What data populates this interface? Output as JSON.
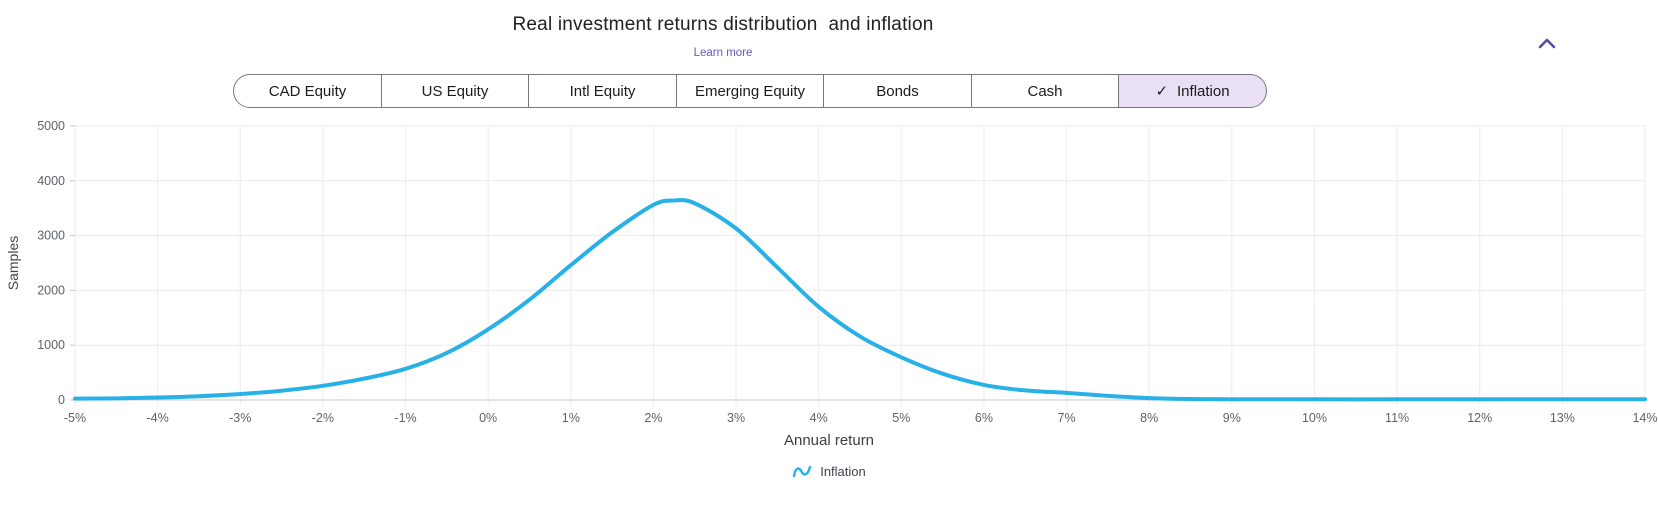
{
  "header": {
    "title": "Real investment returns distribution  and inflation",
    "learn_more": "Learn more",
    "accent_color": "#6a58c0",
    "collapse_icon_color": "#5c4a9e"
  },
  "asset_tabs": {
    "options": [
      "CAD Equity",
      "US Equity",
      "Intl Equity",
      "Emerging Equity",
      "Bonds",
      "Cash",
      "Inflation"
    ],
    "selected": "Inflation",
    "selected_check": "✓",
    "selected_bg": "#e9e0f6"
  },
  "chart_data": {
    "type": "line",
    "title": "Real investment returns distribution  and inflation",
    "xlabel": "Annual return",
    "ylabel": "Samples",
    "x_range": [
      -5,
      14
    ],
    "ylim": [
      0,
      5000
    ],
    "grid": true,
    "x_ticks": [
      "-5%",
      "-4%",
      "-3%",
      "-2%",
      "-1%",
      "0%",
      "1%",
      "2%",
      "3%",
      "4%",
      "5%",
      "6%",
      "7%",
      "8%",
      "9%",
      "10%",
      "11%",
      "12%",
      "13%",
      "14%"
    ],
    "y_ticks": [
      0,
      1000,
      2000,
      3000,
      4000,
      5000
    ],
    "colors": {
      "grid": "#eceaf2",
      "axis": "#c8c6d1",
      "tick_text": "#5f6368"
    },
    "legend": {
      "position": "bottom",
      "entries": [
        {
          "label": "Inflation",
          "color": "#28b1e6",
          "marker": "wave"
        }
      ]
    },
    "series": [
      {
        "name": "Inflation",
        "color": "#28b1e6",
        "x": [
          -5,
          -4.5,
          -4,
          -3.5,
          -3,
          -2.5,
          -2,
          -1.5,
          -1,
          -0.5,
          0,
          0.5,
          1,
          1.5,
          2,
          2.25,
          2.5,
          3,
          3.5,
          4,
          4.5,
          5,
          5.5,
          6,
          6.5,
          7,
          7.5,
          8,
          8.5,
          9,
          10,
          11,
          12,
          13,
          14
        ],
        "y": [
          25,
          30,
          45,
          70,
          110,
          170,
          260,
          390,
          570,
          860,
          1290,
          1830,
          2460,
          3060,
          3560,
          3640,
          3590,
          3130,
          2420,
          1700,
          1160,
          780,
          480,
          275,
          175,
          130,
          75,
          35,
          18,
          14,
          12,
          12,
          12,
          12,
          12
        ]
      }
    ]
  }
}
